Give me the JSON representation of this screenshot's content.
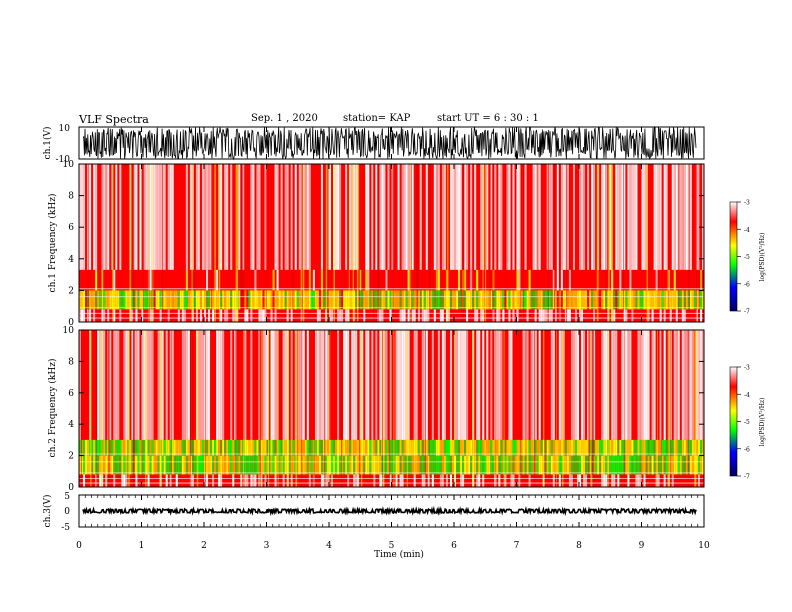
{
  "header": {
    "title": "VLF Spectra",
    "date": "Sep. 1 , 2020",
    "station": "station= KAP",
    "start_ut": "start UT = 6 : 30 : 1"
  },
  "chart_data": [
    {
      "type": "line",
      "panel": "ch1-waveform",
      "ylabel": "ch.1(V)",
      "ylim": [
        -10,
        10
      ],
      "yticks": [
        "10",
        "-10"
      ],
      "xlim": [
        0,
        10
      ],
      "grid": false,
      "description_values": {
        "typical_min": -10,
        "typical_max": 10
      }
    },
    {
      "type": "heatmap",
      "panel": "ch1-spectrogram",
      "ylabel": "ch.1 Frequency (kHz)",
      "ylim": [
        0,
        10
      ],
      "yticks": [
        "0",
        "2",
        "4",
        "6",
        "8",
        "10"
      ],
      "xlim": [
        0,
        10
      ],
      "colorbar": {
        "label": "log(PSD)(V²/Hz)",
        "range": [
          -7,
          -3
        ],
        "ticks": [
          "-3",
          "-4",
          "-5",
          "-6",
          "-7"
        ]
      },
      "band_levels": [
        {
          "f_low": 0,
          "f_high": 0.8,
          "level": -3.3
        },
        {
          "f_low": 0.8,
          "f_high": 2.0,
          "level": -4.4
        },
        {
          "f_low": 2.0,
          "f_high": 3.3,
          "level": -3.6
        },
        {
          "f_low": 3.3,
          "f_high": 10,
          "level": -3.1
        }
      ]
    },
    {
      "type": "heatmap",
      "panel": "ch2-spectrogram",
      "ylabel": "ch.2 Frequency (kHz)",
      "ylim": [
        0,
        10
      ],
      "yticks": [
        "0",
        "2",
        "4",
        "6",
        "8",
        "10"
      ],
      "xlim": [
        0,
        10
      ],
      "colorbar": {
        "label": "log(PSD)(V²/Hz)",
        "range": [
          -7,
          -3
        ],
        "ticks": [
          "-3",
          "-4",
          "-5",
          "-6",
          "-7"
        ]
      },
      "band_levels": [
        {
          "f_low": 0,
          "f_high": 0.8,
          "level": -3.4
        },
        {
          "f_low": 0.8,
          "f_high": 2.0,
          "level": -4.6
        },
        {
          "f_low": 2.0,
          "f_high": 3.0,
          "level": -4.5
        },
        {
          "f_low": 3.0,
          "f_high": 10,
          "level": -3.1
        }
      ]
    },
    {
      "type": "line",
      "panel": "ch3-waveform",
      "ylabel": "ch.3(V)",
      "ylim": [
        -5,
        5
      ],
      "yticks": [
        "5",
        "0",
        "-5"
      ],
      "xlim": [
        0,
        10
      ],
      "grid": false,
      "description_values": {
        "typical_min": -0.6,
        "typical_max": 0.6
      }
    }
  ],
  "xaxis": {
    "label": "Time (min)",
    "ticks": [
      "0",
      "1",
      "2",
      "3",
      "4",
      "5",
      "6",
      "7",
      "8",
      "9",
      "10"
    ]
  },
  "colors": {
    "white": "#ffffff",
    "red": "#ff0000",
    "yellow": "#ffff00",
    "green": "#00ff00",
    "blue": "#0000ff",
    "navy": "#000080"
  }
}
